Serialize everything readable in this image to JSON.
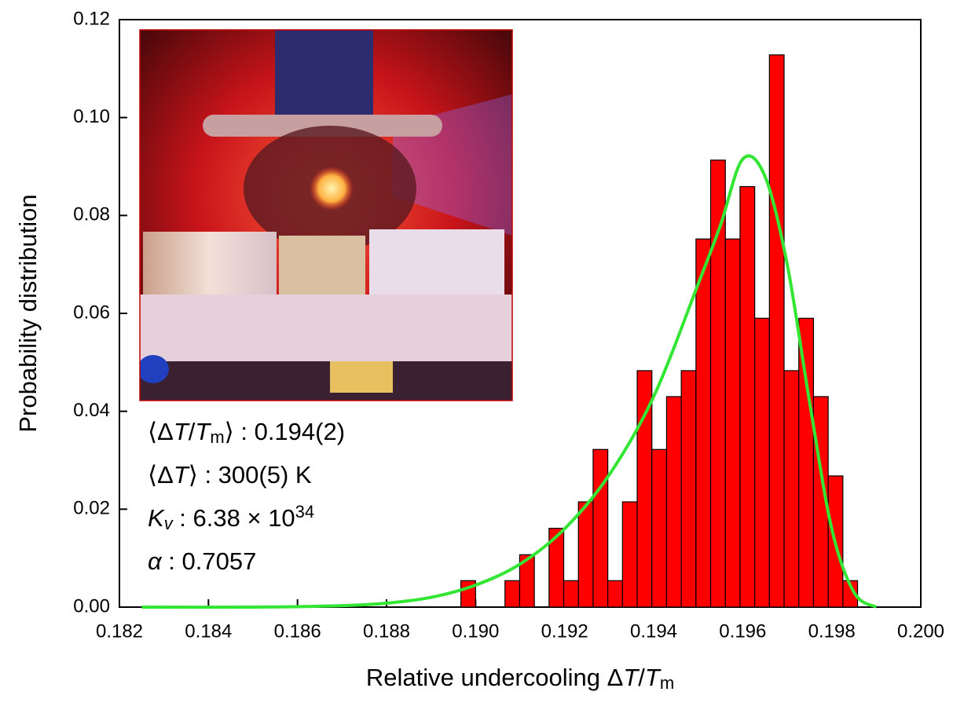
{
  "chart_data": {
    "type": "histogram",
    "xlabel": [
      "Relative undercooling Δ",
      "T",
      "/",
      "T",
      "m"
    ],
    "ylabel": "Probability distribution",
    "annotations": [
      [
        "⟨Δ",
        "T",
        "/",
        "T",
        "m",
        "⟩ : 0.194(2)"
      ],
      [
        "⟨Δ",
        "T",
        "⟩ : 300(5) K"
      ],
      [
        "K",
        "v",
        " : 6.38 × 10",
        "34"
      ],
      [
        "α",
        " : 0.7057"
      ]
    ],
    "bins": [
      0.18967,
      0.19,
      0.19033,
      0.19066,
      0.19099,
      0.19132,
      0.19165,
      0.19198,
      0.19231,
      0.19264,
      0.19297,
      0.1933,
      0.19363,
      0.19396,
      0.19429,
      0.19462,
      0.19495,
      0.19528,
      0.19561,
      0.19594,
      0.19627,
      0.1966,
      0.19693,
      0.19726,
      0.19759,
      0.19792,
      0.19825,
      0.19858
    ],
    "values": [
      0.0054,
      0,
      0,
      0.0054,
      0.0107,
      0,
      0.0161,
      0.0054,
      0.0215,
      0.0322,
      0.0054,
      0.0215,
      0.0483,
      0.0322,
      0.043,
      0.0483,
      0.0752,
      0.0913,
      0.0752,
      0.0859,
      0.059,
      0.1128,
      0.0483,
      0.059,
      0.043,
      0.0268,
      0.0054
    ],
    "color": "#ff0000",
    "curve": {
      "color": "#33e633",
      "x": [
        0.1825,
        0.185,
        0.187,
        0.188,
        0.189,
        0.19,
        0.191,
        0.192,
        0.193,
        0.194,
        0.195,
        0.1955,
        0.196,
        0.1965,
        0.197,
        0.1975,
        0.198,
        0.1985,
        0.199
      ],
      "values": [
        0,
        0,
        0.0003,
        0.0008,
        0.002,
        0.0045,
        0.0088,
        0.016,
        0.027,
        0.043,
        0.066,
        0.078,
        0.0915,
        0.088,
        0.07,
        0.042,
        0.016,
        0.003,
        0
      ]
    },
    "xlim": [
      0.182,
      0.2
    ],
    "xticks": [
      0.182,
      0.184,
      0.186,
      0.188,
      {
        "value": 0.19,
        "label": "0.190"
      },
      0.192,
      0.194,
      0.196,
      0.198,
      {
        "value": 0.2,
        "label": "0.200"
      }
    ],
    "ylim": [
      0,
      0.12
    ],
    "yticks": [
      {
        "value": 0,
        "label": "0.00"
      },
      0.02,
      0.04,
      0.06,
      0.08,
      {
        "value": 0.1,
        "label": "0.10"
      },
      0.12
    ]
  }
}
